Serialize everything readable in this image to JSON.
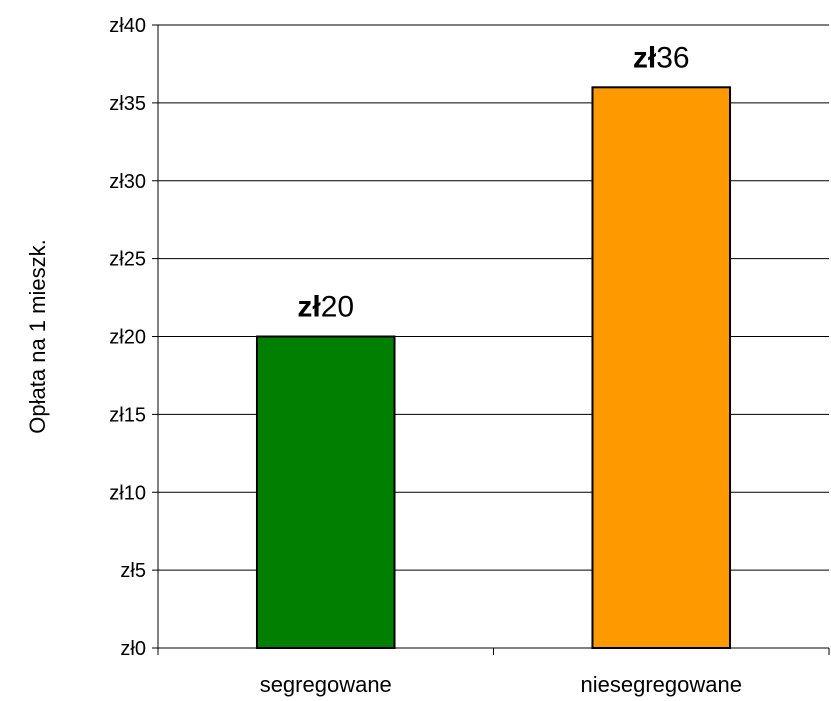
{
  "chart_data": {
    "type": "bar",
    "categories": [
      "segregowane",
      "niesegregowane"
    ],
    "values": [
      20,
      36
    ],
    "value_prefix": "zł",
    "data_labels": [
      {
        "prefix": "zł",
        "number": "20"
      },
      {
        "prefix": "zł",
        "number": "36"
      }
    ],
    "title": "",
    "xlabel": "",
    "ylabel": "Opłata na 1 mieszk.",
    "ylim": [
      0,
      40
    ],
    "yticks": [
      0,
      5,
      10,
      15,
      20,
      25,
      30,
      35,
      40
    ],
    "ytick_labels": [
      "zł0",
      "zł5",
      "zł10",
      "zł15",
      "zł20",
      "zł25",
      "zł30",
      "zł35",
      "zł40"
    ],
    "grid": true,
    "legend": "none",
    "colors": [
      "#007F00",
      "#FF9900"
    ]
  }
}
